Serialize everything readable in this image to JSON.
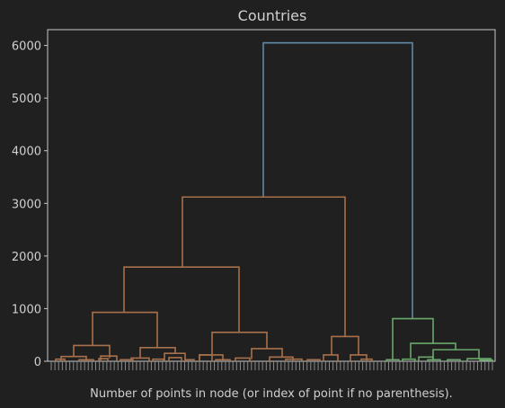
{
  "chart_data": {
    "type": "dendrogram",
    "title": "Countries",
    "xlabel": "Number of points in node (or index of point if no parenthesis).",
    "ylabel": "",
    "ylim": [
      0,
      6300
    ],
    "yticks": [
      0,
      1000,
      2000,
      3000,
      4000,
      5000,
      6000
    ],
    "grid": false,
    "colors": {
      "background": "#202020",
      "text": "#d0d0d0",
      "axis": "#c8c8c8",
      "cluster_1": "#a8704a",
      "cluster_2": "#6aa86a",
      "root": "#5e8aa6"
    },
    "leaf_count": 120,
    "top_merges": [
      {
        "id": "root",
        "height": 6050,
        "children": [
          "orange",
          "green"
        ],
        "color": "root"
      },
      {
        "id": "orange",
        "height": 3120,
        "children": [
          "o_left",
          "o_right"
        ],
        "color": "cluster_1"
      },
      {
        "id": "o_left",
        "height": 1790,
        "children": [
          "o_ll",
          "o_lr"
        ],
        "color": "cluster_1"
      },
      {
        "id": "o_ll",
        "height": 930,
        "children": [
          "o_ll_a",
          "o_ll_b"
        ],
        "color": "cluster_1"
      },
      {
        "id": "o_ll_a",
        "height": 300,
        "color": "cluster_1"
      },
      {
        "id": "o_ll_b",
        "height": 260,
        "color": "cluster_1"
      },
      {
        "id": "o_lr",
        "height": 550,
        "children": [
          "o_lr_a",
          "o_lr_b"
        ],
        "color": "cluster_1"
      },
      {
        "id": "o_lr_a",
        "height": 120,
        "color": "cluster_1"
      },
      {
        "id": "o_lr_b",
        "height": 240,
        "color": "cluster_1"
      },
      {
        "id": "o_right",
        "height": 470,
        "color": "cluster_1"
      },
      {
        "id": "green",
        "height": 810,
        "color": "cluster_2"
      },
      {
        "id": "green_inner",
        "height": 340,
        "color": "cluster_2"
      },
      {
        "id": "green_inner_b",
        "height": 220,
        "color": "cluster_2"
      }
    ]
  }
}
